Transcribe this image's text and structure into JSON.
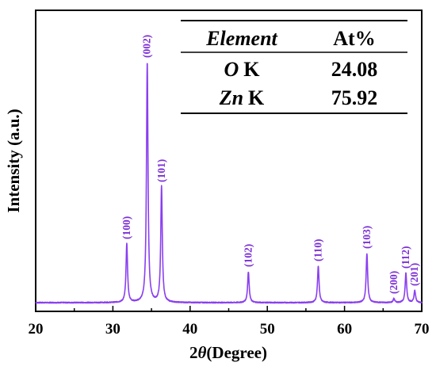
{
  "chart_data": {
    "type": "line",
    "xlabel": "2θ (Degree)",
    "xlabel_parts": {
      "num": "2",
      "theta": "θ",
      "rest": "(Degree)"
    },
    "ylabel": "Intensity (a.u.)",
    "xlim": [
      20,
      70
    ],
    "xticks": [
      "20",
      "30",
      "40",
      "50",
      "60",
      "70"
    ],
    "grid": false,
    "line_color": "#8a3ff0",
    "label_color": "#7b2fd6",
    "baseline": 3,
    "noise_amp": 0.6,
    "peak_width": 0.12,
    "peaks": [
      {
        "x": 31.8,
        "intensity": 74,
        "label": "(100)"
      },
      {
        "x": 34.45,
        "intensity": 303,
        "label": "(002)"
      },
      {
        "x": 36.3,
        "intensity": 146,
        "label": "(101)"
      },
      {
        "x": 47.55,
        "intensity": 39,
        "label": "(102)"
      },
      {
        "x": 56.6,
        "intensity": 46,
        "label": "(110)"
      },
      {
        "x": 62.9,
        "intensity": 62,
        "label": "(103)"
      },
      {
        "x": 66.4,
        "intensity": 5,
        "label": "(200)"
      },
      {
        "x": 67.95,
        "intensity": 37,
        "label": "(112)"
      },
      {
        "x": 69.1,
        "intensity": 15,
        "label": "(201)"
      }
    ],
    "table": {
      "headers": [
        "Element",
        "At%"
      ],
      "rows": [
        {
          "element": "O",
          "line": "K",
          "value": "24.08"
        },
        {
          "element": "Zn",
          "line": "K",
          "value": "75.92"
        }
      ]
    }
  }
}
